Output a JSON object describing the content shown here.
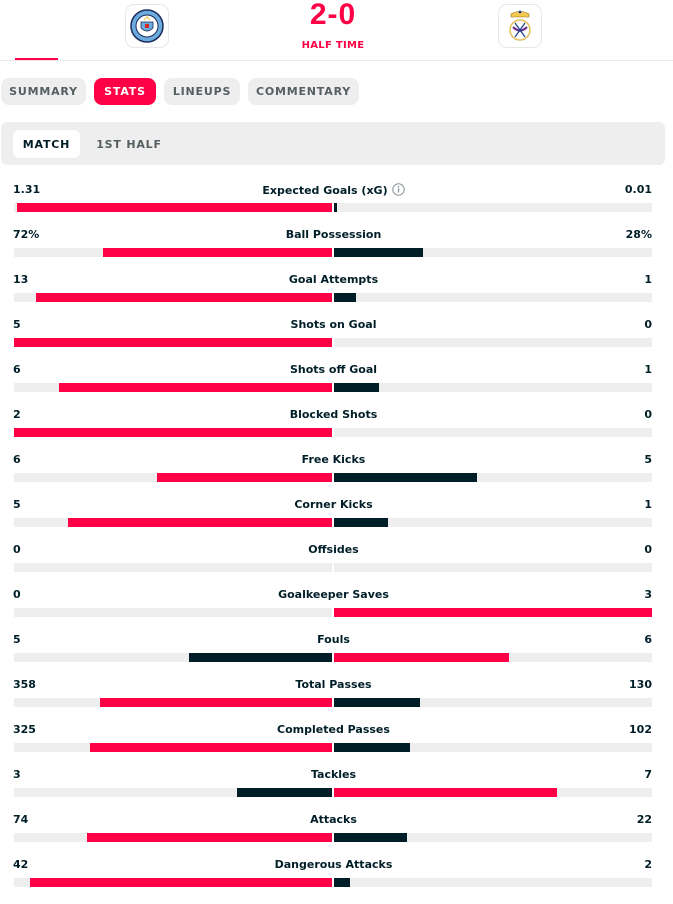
{
  "match": {
    "home_logo_icon": "manchester-city-crest-icon",
    "away_logo_icon": "real-madrid-crest-icon",
    "score": "2-0",
    "status": "HALF TIME"
  },
  "tabs": [
    {
      "label": "SUMMARY",
      "active": false
    },
    {
      "label": "STATS",
      "active": true
    },
    {
      "label": "LINEUPS",
      "active": false
    },
    {
      "label": "COMMENTARY",
      "active": false
    }
  ],
  "period_tabs": [
    {
      "label": "MATCH",
      "active": true
    },
    {
      "label": "1ST HALF",
      "active": false
    }
  ],
  "colors": {
    "winner": "#ff0046",
    "loser": "#001e28",
    "track": "#eeeeee"
  },
  "stats": [
    {
      "label": "Expected Goals (xG)",
      "home": "1.31",
      "away": "0.01",
      "home_share": 0.99,
      "away_share": 0.01,
      "info": true
    },
    {
      "label": "Ball Possession",
      "home": "72%",
      "away": "28%",
      "home_share": 0.72,
      "away_share": 0.28
    },
    {
      "label": "Goal Attempts",
      "home": "13",
      "away": "1",
      "home_share": 0.93,
      "away_share": 0.07
    },
    {
      "label": "Shots on Goal",
      "home": "5",
      "away": "0",
      "home_share": 1,
      "away_share": 0
    },
    {
      "label": "Shots off Goal",
      "home": "6",
      "away": "1",
      "home_share": 0.86,
      "away_share": 0.14
    },
    {
      "label": "Blocked Shots",
      "home": "2",
      "away": "0",
      "home_share": 1,
      "away_share": 0
    },
    {
      "label": "Free Kicks",
      "home": "6",
      "away": "5",
      "home_share": 0.55,
      "away_share": 0.45
    },
    {
      "label": "Corner Kicks",
      "home": "5",
      "away": "1",
      "home_share": 0.83,
      "away_share": 0.17
    },
    {
      "label": "Offsides",
      "home": "0",
      "away": "0",
      "home_share": 0,
      "away_share": 0
    },
    {
      "label": "Goalkeeper Saves",
      "home": "0",
      "away": "3",
      "home_share": 0,
      "away_share": 1
    },
    {
      "label": "Fouls",
      "home": "5",
      "away": "6",
      "home_share": 0.45,
      "away_share": 0.55
    },
    {
      "label": "Total Passes",
      "home": "358",
      "away": "130",
      "home_share": 0.73,
      "away_share": 0.27
    },
    {
      "label": "Completed Passes",
      "home": "325",
      "away": "102",
      "home_share": 0.76,
      "away_share": 0.24
    },
    {
      "label": "Tackles",
      "home": "3",
      "away": "7",
      "home_share": 0.3,
      "away_share": 0.7
    },
    {
      "label": "Attacks",
      "home": "74",
      "away": "22",
      "home_share": 0.77,
      "away_share": 0.23
    },
    {
      "label": "Dangerous Attacks",
      "home": "42",
      "away": "2",
      "home_share": 0.95,
      "away_share": 0.05
    }
  ]
}
